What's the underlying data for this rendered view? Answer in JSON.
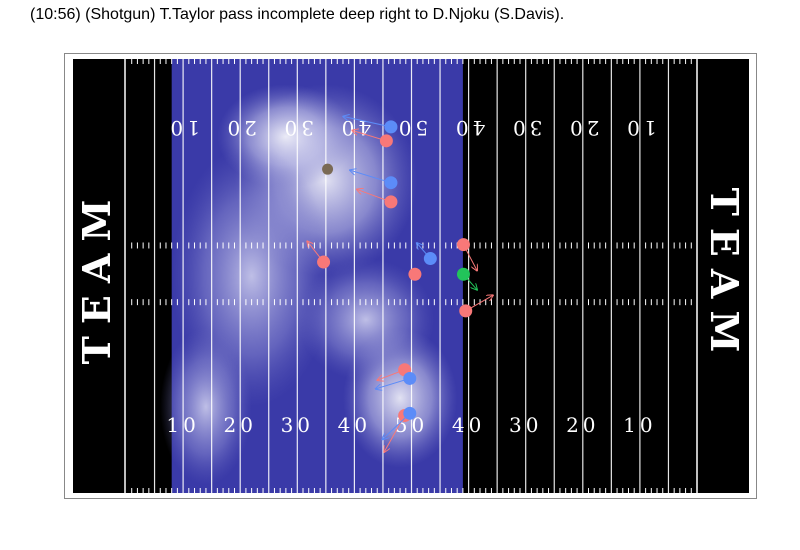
{
  "play": {
    "description": "(10:56) (Shotgun) T.Taylor pass incomplete deep right to D.Njoku (S.Davis)."
  },
  "field": {
    "endzone_left_label": "TEAM",
    "endzone_right_label": "TEAM",
    "yard_numbers_top": [
      "10",
      "20",
      "30",
      "40",
      "50",
      "40",
      "30",
      "20",
      "10"
    ],
    "yard_numbers_bottom": [
      "10",
      "20",
      "30",
      "40",
      "50",
      "40",
      "30",
      "20",
      "10"
    ],
    "line_of_scrimmage_yard": 59,
    "highlight_from_yard": 8,
    "highlight_to_yard": 59
  },
  "colors": {
    "field": "#000000",
    "highlight_base": "#3a3aa8",
    "offense": "#f87878",
    "defense": "#5c8cf8",
    "ball": "#22c45a",
    "ball_target": "#7a6a55",
    "lines": "#ffffff"
  },
  "players": [
    {
      "team": "defense",
      "yard": 46.4,
      "y": 15.8,
      "dx": -3.5,
      "dy": -1.0
    },
    {
      "team": "offense",
      "yard": 45.6,
      "y": 19.0,
      "dx": -2.5,
      "dy": -1.0
    },
    {
      "team": "defense",
      "yard": 46.4,
      "y": 28.6,
      "dx": -3.0,
      "dy": -1.2
    },
    {
      "team": "offense",
      "yard": 46.4,
      "y": 33.0,
      "dx": -2.5,
      "dy": -1.2
    },
    {
      "team": "offense",
      "yard": 34.6,
      "y": 46.8,
      "dx": -1.2,
      "dy": -2.0
    },
    {
      "team": "defense",
      "yard": 53.3,
      "y": 46.0,
      "dx": -1.0,
      "dy": -1.5
    },
    {
      "team": "offense",
      "yard": 50.6,
      "y": 49.6,
      "dx": 0.0,
      "dy": 0.0
    },
    {
      "team": "offense",
      "yard": 59.1,
      "y": 42.8,
      "dx": 1.0,
      "dy": 2.5
    },
    {
      "team": "ball",
      "yard": 59.1,
      "y": 49.6,
      "dx": 1.0,
      "dy": 1.5
    },
    {
      "team": "offense",
      "yard": 59.5,
      "y": 58.0,
      "dx": 2.0,
      "dy": -1.5
    },
    {
      "team": "offense",
      "yard": 48.8,
      "y": 71.5,
      "dx": -2.0,
      "dy": 1.0
    },
    {
      "team": "defense",
      "yard": 49.7,
      "y": 73.5,
      "dx": -2.5,
      "dy": 1.0
    },
    {
      "team": "offense",
      "yard": 48.8,
      "y": 82.0,
      "dx": -1.5,
      "dy": 3.5
    },
    {
      "team": "defense",
      "yard": 49.7,
      "y": 81.5,
      "dx": -2.0,
      "dy": 2.5
    },
    {
      "team": "ball_target",
      "yard": 35.3,
      "y": 25.5,
      "dx": 0.0,
      "dy": 0.0
    }
  ]
}
